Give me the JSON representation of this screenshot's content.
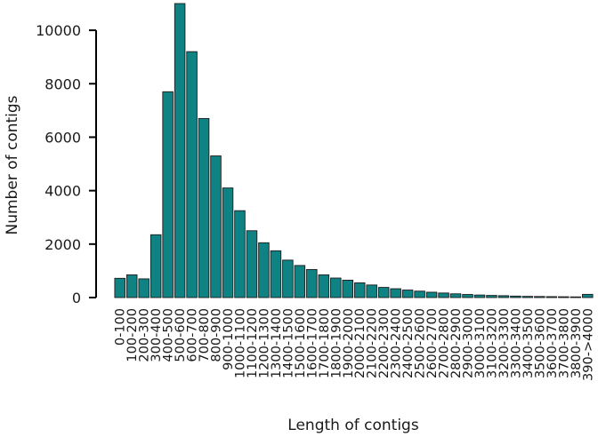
{
  "chart_data": {
    "type": "bar",
    "title": "",
    "xlabel": "Length of contigs",
    "ylabel": "Number of contigs",
    "ylim": [
      0,
      11000
    ],
    "yticks": [
      0,
      2000,
      4000,
      6000,
      8000,
      10000
    ],
    "ytick_labels": [
      "0",
      "2000",
      "4000",
      "6000",
      "8000",
      "10000"
    ],
    "bar_color": "#0f8284",
    "grid": false,
    "legend": "none",
    "categories": [
      "0-100",
      "100-200",
      "200-300",
      "300-400",
      "400-500",
      "500-600",
      "600-700",
      "700-800",
      "800-900",
      "900-1000",
      "1000-1100",
      "1100-1200",
      "1200-1300",
      "1300-1400",
      "1400-1500",
      "1500-1600",
      "1600-1700",
      "1700-1800",
      "1800-1900",
      "1900-2000",
      "2000-2100",
      "2100-2200",
      "2200-2300",
      "2300-2400",
      "2400-2500",
      "2500-2600",
      "2600-2700",
      "2700-2800",
      "2800-2900",
      "2900-3000",
      "3000-3100",
      "3100-3200",
      "3200-3300",
      "3300-3400",
      "3400-3500",
      "3500-3600",
      "3600-3700",
      "3700-3800",
      "3800-3900",
      "390->4000"
    ],
    "values": [
      720,
      850,
      700,
      2350,
      7700,
      11000,
      9200,
      6700,
      5300,
      4100,
      3250,
      2500,
      2050,
      1750,
      1400,
      1200,
      1050,
      850,
      730,
      650,
      550,
      470,
      380,
      330,
      280,
      240,
      200,
      170,
      140,
      115,
      95,
      80,
      70,
      55,
      45,
      40,
      35,
      30,
      25,
      120
    ]
  }
}
